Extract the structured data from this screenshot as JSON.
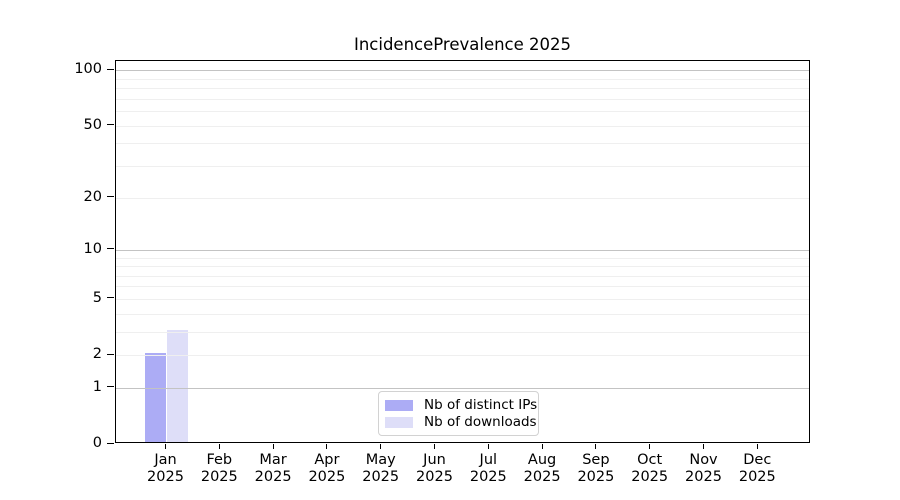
{
  "title": "IncidencePrevalence 2025",
  "colors": {
    "bar_distinct_ips": "#acacf5",
    "bar_downloads": "#dedef8",
    "grid_major": "#c3c3c3",
    "grid_minor": "#efefef",
    "spine": "#000000",
    "legend_border": "#d2d2d2"
  },
  "legend": {
    "items": [
      {
        "label": "Nb of distinct IPs",
        "color": "#acacf5"
      },
      {
        "label": "Nb of downloads",
        "color": "#dedef8"
      }
    ]
  },
  "chart_data": {
    "type": "bar",
    "title": "IncidencePrevalence 2025",
    "categories": [
      "Jan 2025",
      "Feb 2025",
      "Mar 2025",
      "Apr 2025",
      "May 2025",
      "Jun 2025",
      "Jul 2025",
      "Aug 2025",
      "Sep 2025",
      "Oct 2025",
      "Nov 2025",
      "Dec 2025"
    ],
    "x_tick_month": [
      "Jan",
      "Feb",
      "Mar",
      "Apr",
      "May",
      "Jun",
      "Jul",
      "Aug",
      "Sep",
      "Oct",
      "Nov",
      "Dec"
    ],
    "x_tick_year": "2025",
    "series": [
      {
        "name": "Nb of distinct IPs",
        "color": "#acacf5",
        "values": [
          2,
          0,
          0,
          0,
          0,
          0,
          0,
          0,
          0,
          0,
          0,
          0
        ]
      },
      {
        "name": "Nb of downloads",
        "color": "#dedef8",
        "values": [
          3,
          0,
          0,
          0,
          0,
          0,
          0,
          0,
          0,
          0,
          0,
          0
        ]
      }
    ],
    "y_axis": {
      "scale": "log1p",
      "ticks": [
        0,
        1,
        2,
        5,
        10,
        20,
        50,
        100
      ],
      "axis_max": 112,
      "major_gridlines": [
        1,
        10,
        100
      ],
      "minor_gridlines": [
        2,
        3,
        4,
        5,
        6,
        7,
        8,
        9,
        20,
        30,
        40,
        50,
        60,
        70,
        80,
        90
      ]
    },
    "xlabel": "",
    "ylabel": "",
    "grid": true,
    "legend_position": "lower center"
  }
}
